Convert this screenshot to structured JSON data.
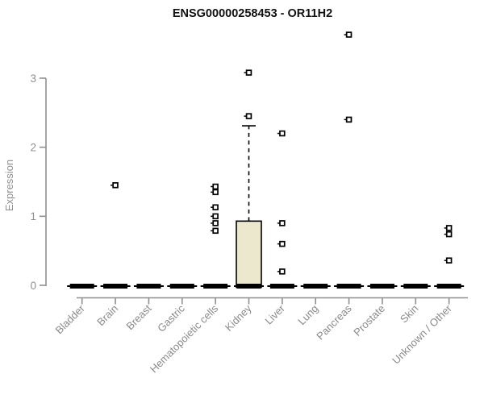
{
  "title": "ENSG00000258453 - OR11H2",
  "y_axis": {
    "label": "Expression",
    "ticks": [
      "0",
      "1",
      "2",
      "3"
    ]
  },
  "colors": {
    "axis": "#8f8f8f",
    "box_fill": "#ece8ce",
    "box_stroke": "#000000",
    "outlier_stroke": "#000000",
    "title": "#111111"
  },
  "chart_data": {
    "type": "boxplot",
    "title": "ENSG00000258453 - OR11H2",
    "xlabel": "",
    "ylabel": "Expression",
    "ylim": [
      0,
      3.7
    ],
    "yticks": [
      0,
      1,
      2,
      3
    ],
    "grid": false,
    "legend": "none",
    "categories": [
      "Bladder",
      "Brain",
      "Breast",
      "Gastric",
      "Hematopoietic cells",
      "Kidney",
      "Liver",
      "Lung",
      "Pancreas",
      "Prostate",
      "Skin",
      "Unknown / Other"
    ],
    "series": [
      {
        "name": "Bladder",
        "median": 0,
        "q1": 0,
        "q3": 0,
        "whisker_low": 0,
        "whisker_high": 0,
        "outliers": []
      },
      {
        "name": "Brain",
        "median": 0,
        "q1": 0,
        "q3": 0,
        "whisker_low": 0,
        "whisker_high": 0,
        "outliers": [
          1.45
        ]
      },
      {
        "name": "Breast",
        "median": 0,
        "q1": 0,
        "q3": 0,
        "whisker_low": 0,
        "whisker_high": 0,
        "outliers": []
      },
      {
        "name": "Gastric",
        "median": 0,
        "q1": 0,
        "q3": 0,
        "whisker_low": 0,
        "whisker_high": 0,
        "outliers": []
      },
      {
        "name": "Hematopoietic cells",
        "median": 0,
        "q1": 0,
        "q3": 0,
        "whisker_low": 0,
        "whisker_high": 0,
        "outliers": [
          1.43,
          1.35,
          1.13,
          1.0,
          0.9,
          0.79
        ]
      },
      {
        "name": "Kidney",
        "median": 0,
        "q1": 0,
        "q3": 0.93,
        "whisker_low": 0,
        "whisker_high": 2.31,
        "outliers": [
          3.08,
          2.45
        ]
      },
      {
        "name": "Liver",
        "median": 0,
        "q1": 0,
        "q3": 0,
        "whisker_low": 0,
        "whisker_high": 0,
        "outliers": [
          2.2,
          0.9,
          0.6,
          0.2
        ]
      },
      {
        "name": "Lung",
        "median": 0,
        "q1": 0,
        "q3": 0,
        "whisker_low": 0,
        "whisker_high": 0,
        "outliers": []
      },
      {
        "name": "Pancreas",
        "median": 0,
        "q1": 0,
        "q3": 0,
        "whisker_low": 0,
        "whisker_high": 0,
        "outliers": [
          3.63,
          2.4
        ]
      },
      {
        "name": "Prostate",
        "median": 0,
        "q1": 0,
        "q3": 0,
        "whisker_low": 0,
        "whisker_high": 0,
        "outliers": []
      },
      {
        "name": "Skin",
        "median": 0,
        "q1": 0,
        "q3": 0,
        "whisker_low": 0,
        "whisker_high": 0,
        "outliers": []
      },
      {
        "name": "Unknown / Other",
        "median": 0,
        "q1": 0,
        "q3": 0,
        "whisker_low": 0,
        "whisker_high": 0,
        "outliers": [
          0.83,
          0.74,
          0.36
        ]
      }
    ]
  }
}
